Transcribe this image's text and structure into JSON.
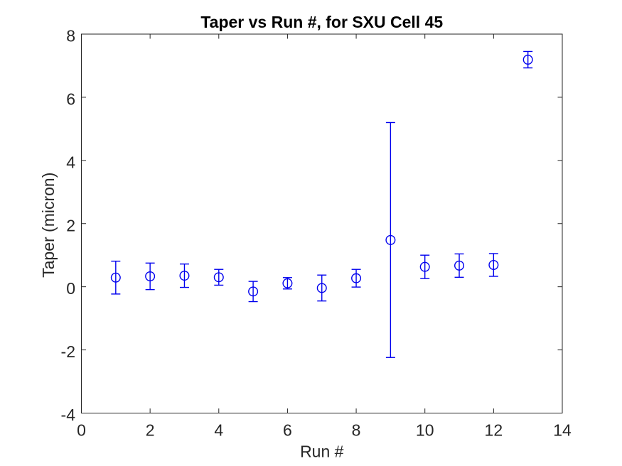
{
  "figure": {
    "background": "#ffffff"
  },
  "chart_data": {
    "type": "scatter",
    "subtype": "errorbar",
    "title": "Taper vs Run #, for SXU Cell 45",
    "xlabel": "Run #",
    "ylabel": "Taper (micron)",
    "xlim": [
      0,
      14
    ],
    "ylim": [
      -4,
      8
    ],
    "xticks": [
      0,
      2,
      4,
      6,
      8,
      10,
      12,
      14
    ],
    "yticks": [
      -4,
      -2,
      0,
      2,
      4,
      6,
      8
    ],
    "grid": false,
    "box": true,
    "legend_position": "none",
    "axis_color": "#262626",
    "series": [
      {
        "name": "Taper",
        "marker": "open-circle",
        "color": "#0000EE",
        "x": [
          1,
          2,
          3,
          4,
          5,
          6,
          7,
          8,
          9,
          10,
          11,
          12,
          13
        ],
        "y": [
          0.29,
          0.33,
          0.35,
          0.3,
          -0.15,
          0.11,
          -0.04,
          0.27,
          1.48,
          0.63,
          0.67,
          0.69,
          7.19
        ],
        "yerr": [
          0.52,
          0.42,
          0.37,
          0.25,
          0.32,
          0.18,
          0.41,
          0.28,
          3.72,
          0.37,
          0.37,
          0.36,
          0.26
        ]
      }
    ]
  }
}
